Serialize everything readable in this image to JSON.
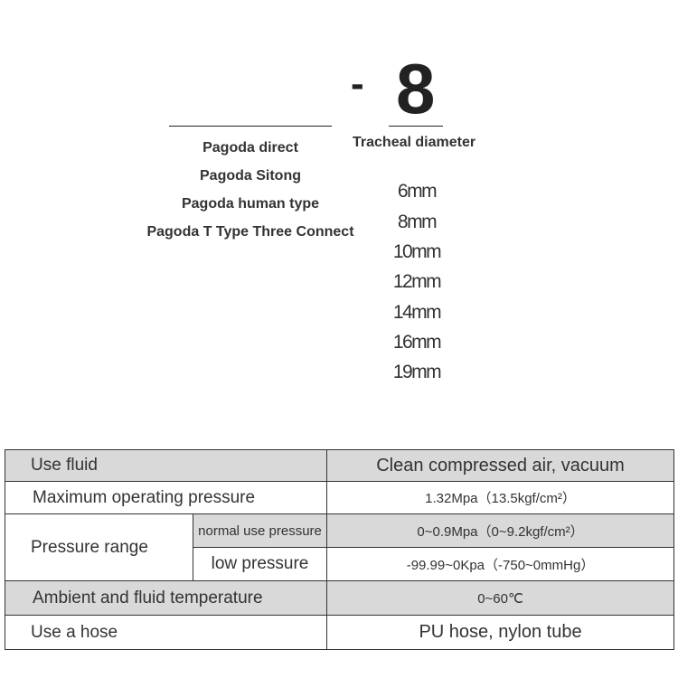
{
  "code": {
    "dash": "-",
    "number": "8"
  },
  "tracheal_label": "Tracheal diameter",
  "types": [
    "Pagoda direct",
    "Pagoda Sitong",
    "Pagoda human type",
    "Pagoda T Type Three Connect"
  ],
  "diameters": [
    "6mm",
    "8mm",
    "10mm",
    "12mm",
    "14mm",
    "16mm",
    "19mm"
  ],
  "table": {
    "use_fluid": {
      "label": "Use fluid",
      "value": "Clean compressed air, vacuum"
    },
    "max_pressure": {
      "label": "Maximum operating pressure",
      "value": "1.32Mpa（13.5kgf/cm²）"
    },
    "pressure_range": {
      "label": "Pressure range",
      "normal_label": "normal use pressure",
      "normal_value": "0~0.9Mpa（0~9.2kgf/cm²）",
      "low_label": "low pressure",
      "low_value": "-99.99~0Kpa（-750~0mmHg）"
    },
    "temperature": {
      "label": "Ambient and fluid temperature",
      "value": "0~60℃"
    },
    "hose": {
      "label": "Use a hose",
      "value": "PU hose, nylon tube"
    }
  },
  "colors": {
    "row_shade": "#d9d9d9"
  }
}
